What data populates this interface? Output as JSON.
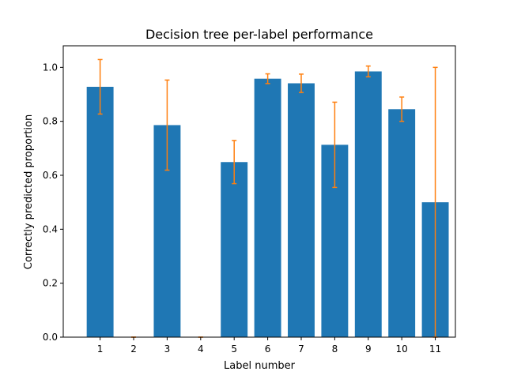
{
  "chart_data": {
    "type": "bar",
    "title": "Decision tree per-label performance",
    "xlabel": "Label number",
    "ylabel": "Correctly predicted proportion",
    "categories": [
      "1",
      "2",
      "3",
      "4",
      "5",
      "6",
      "7",
      "8",
      "9",
      "10",
      "11"
    ],
    "values": [
      0.928,
      0.0,
      0.786,
      0.0,
      0.649,
      0.958,
      0.941,
      0.713,
      0.985,
      0.845,
      0.5
    ],
    "error": [
      0.101,
      0.0,
      0.167,
      0.0,
      0.08,
      0.018,
      0.034,
      0.158,
      0.02,
      0.045,
      0.5
    ],
    "ylim": [
      0,
      1.08
    ],
    "yticks": [
      0.0,
      0.2,
      0.4,
      0.6,
      0.8,
      1.0
    ],
    "ytick_labels": [
      "0.0",
      "0.2",
      "0.4",
      "0.6",
      "0.8",
      "1.0"
    ],
    "grid": false,
    "colors": {
      "bar": "#1f77b4",
      "errorbar": "#ff7f0e",
      "axes": "#000000"
    }
  }
}
